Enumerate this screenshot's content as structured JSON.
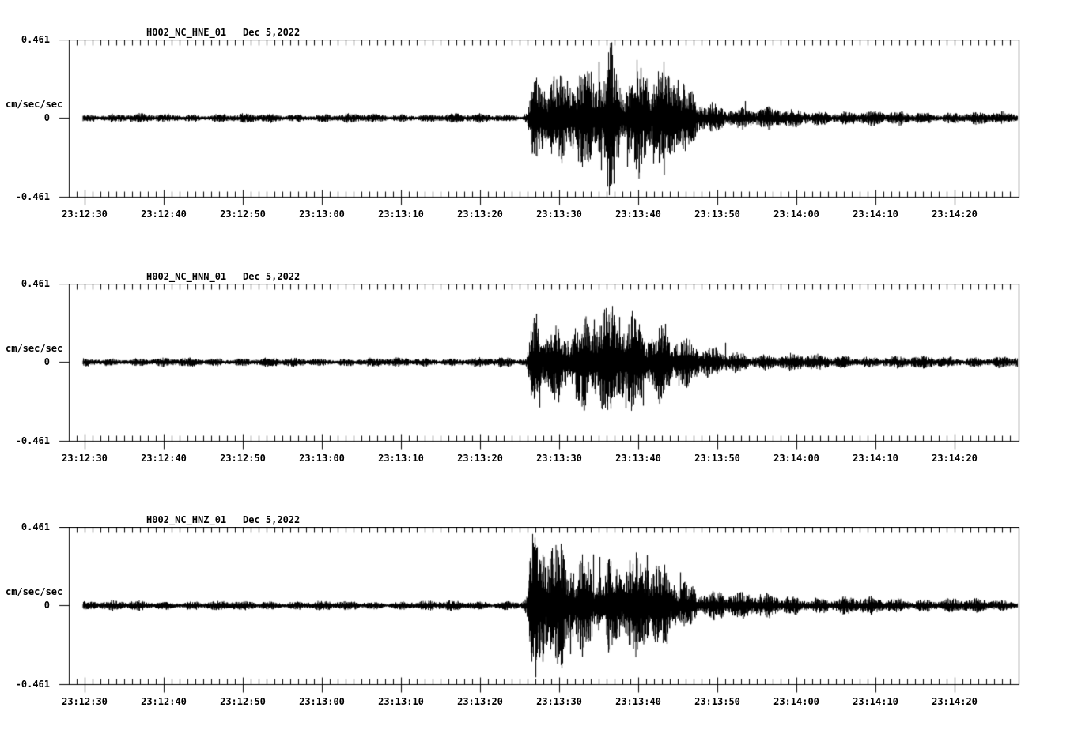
{
  "page": {
    "background": "#ffffff",
    "ink": "#000000"
  },
  "chart_data": [
    {
      "type": "line",
      "kind": "seismogram-trace",
      "title": "H002_NC_HNE_01",
      "date": "Dec 5,2022",
      "ylabel": "cm/sec/sec",
      "y_ticks": [
        "0.461",
        "0",
        "-0.461"
      ],
      "ylim": [
        -0.461,
        0.461
      ],
      "time_window": {
        "start": "23:12:28",
        "end": "23:14:28"
      },
      "x_tick_labels": [
        "23:12:30",
        "23:12:40",
        "23:12:50",
        "23:13:00",
        "23:13:10",
        "23:13:20",
        "23:13:30",
        "23:13:40",
        "23:13:50",
        "23:14:00",
        "23:14:10",
        "23:14:20"
      ],
      "x_major_interval_sec": 10,
      "x_minor_interval_sec": 1,
      "event_onset": "23:13:26",
      "peak_amplitude": 0.445,
      "noise_amplitude": 0.021,
      "seed": 11,
      "envelope": [
        [
          1.8,
          0.021
        ],
        [
          40,
          0.02
        ],
        [
          57.2,
          0.022
        ],
        [
          57.9,
          0.03
        ],
        [
          58.25,
          0.1
        ],
        [
          58.6,
          0.21
        ],
        [
          59.5,
          0.23
        ],
        [
          60.5,
          0.2
        ],
        [
          62,
          0.18
        ],
        [
          63.5,
          0.19
        ],
        [
          65,
          0.21
        ],
        [
          66.5,
          0.26
        ],
        [
          67.6,
          0.3
        ],
        [
          68.5,
          0.4
        ],
        [
          69.2,
          0.31
        ],
        [
          70.2,
          0.26
        ],
        [
          71.2,
          0.27
        ],
        [
          72.3,
          0.3
        ],
        [
          73.5,
          0.25
        ],
        [
          75,
          0.23
        ],
        [
          76.5,
          0.22
        ],
        [
          77.6,
          0.17
        ],
        [
          78.6,
          0.12
        ],
        [
          80,
          0.095
        ],
        [
          82,
          0.075
        ],
        [
          84,
          0.062
        ],
        [
          87,
          0.052
        ],
        [
          90,
          0.044
        ],
        [
          95,
          0.038
        ],
        [
          100,
          0.034
        ],
        [
          105,
          0.031
        ],
        [
          110,
          0.029
        ],
        [
          120,
          0.027
        ]
      ],
      "notable_peaks": [
        [
          68.55,
          0.445
        ],
        [
          68.9,
          -0.385
        ],
        [
          66.95,
          0.33
        ],
        [
          67.3,
          -0.305
        ],
        [
          72.25,
          0.295
        ],
        [
          70.6,
          -0.285
        ],
        [
          64.4,
          -0.255
        ],
        [
          61.3,
          0.245
        ],
        [
          75.2,
          0.25
        ],
        [
          73.9,
          -0.265
        ],
        [
          59.0,
          0.22
        ],
        [
          63.0,
          0.22
        ],
        [
          77.0,
          0.225
        ],
        [
          85.5,
          0.1
        ]
      ]
    },
    {
      "type": "line",
      "kind": "seismogram-trace",
      "title": "H002_NC_HNN_01",
      "date": "Dec 5,2022",
      "ylabel": "cm/sec/sec",
      "y_ticks": [
        "0.461",
        "0",
        "-0.461"
      ],
      "ylim": [
        -0.461,
        0.461
      ],
      "time_window": {
        "start": "23:12:28",
        "end": "23:14:28"
      },
      "x_tick_labels": [
        "23:12:30",
        "23:12:40",
        "23:12:50",
        "23:13:00",
        "23:13:10",
        "23:13:20",
        "23:13:30",
        "23:13:40",
        "23:13:50",
        "23:14:00",
        "23:14:10",
        "23:14:20"
      ],
      "x_major_interval_sec": 10,
      "x_minor_interval_sec": 1,
      "event_onset": "23:13:26",
      "peak_amplitude": 0.285,
      "noise_amplitude": 0.021,
      "seed": 22,
      "envelope": [
        [
          1.8,
          0.021
        ],
        [
          40,
          0.02
        ],
        [
          57.4,
          0.022
        ],
        [
          58.0,
          0.035
        ],
        [
          58.3,
          0.12
        ],
        [
          58.7,
          0.25
        ],
        [
          59.4,
          0.27
        ],
        [
          60.4,
          0.22
        ],
        [
          61.5,
          0.2
        ],
        [
          63,
          0.185
        ],
        [
          64.5,
          0.195
        ],
        [
          66,
          0.21
        ],
        [
          67.2,
          0.22
        ],
        [
          68.2,
          0.245
        ],
        [
          69.2,
          0.255
        ],
        [
          70.2,
          0.26
        ],
        [
          71.2,
          0.245
        ],
        [
          72.2,
          0.25
        ],
        [
          73.2,
          0.225
        ],
        [
          74.2,
          0.21
        ],
        [
          75.2,
          0.195
        ],
        [
          76.2,
          0.17
        ],
        [
          77.2,
          0.135
        ],
        [
          78.2,
          0.105
        ],
        [
          79.6,
          0.082
        ],
        [
          81,
          0.068
        ],
        [
          83,
          0.057
        ],
        [
          86,
          0.047
        ],
        [
          90,
          0.04
        ],
        [
          95,
          0.035
        ],
        [
          100,
          0.031
        ],
        [
          105,
          0.029
        ],
        [
          110,
          0.028
        ],
        [
          120,
          0.026
        ]
      ],
      "notable_peaks": [
        [
          59.05,
          0.285
        ],
        [
          58.75,
          0.26
        ],
        [
          59.5,
          -0.265
        ],
        [
          68.9,
          0.27
        ],
        [
          70.35,
          -0.27
        ],
        [
          66.4,
          0.25
        ],
        [
          72.6,
          -0.255
        ],
        [
          61.9,
          -0.235
        ],
        [
          75.4,
          0.225
        ],
        [
          64.1,
          -0.215
        ],
        [
          69.6,
          0.265
        ],
        [
          71.6,
          0.25
        ],
        [
          83.0,
          0.115
        ]
      ]
    },
    {
      "type": "line",
      "kind": "seismogram-trace",
      "title": "H002_NC_HNZ_01",
      "date": "Dec 5,2022",
      "ylabel": "cm/sec/sec",
      "y_ticks": [
        "0.461",
        "0",
        "-0.461"
      ],
      "ylim": [
        -0.461,
        0.461
      ],
      "time_window": {
        "start": "23:12:28",
        "end": "23:14:28"
      },
      "x_tick_labels": [
        "23:12:30",
        "23:12:40",
        "23:12:50",
        "23:13:00",
        "23:13:10",
        "23:13:20",
        "23:13:30",
        "23:13:40",
        "23:13:50",
        "23:14:00",
        "23:14:10",
        "23:14:20"
      ],
      "x_major_interval_sec": 10,
      "x_minor_interval_sec": 1,
      "event_onset": "23:13:26",
      "peak_amplitude": -0.42,
      "noise_amplitude": 0.022,
      "seed": 33,
      "envelope": [
        [
          1.8,
          0.022
        ],
        [
          40,
          0.021
        ],
        [
          57.3,
          0.024
        ],
        [
          57.9,
          0.05
        ],
        [
          58.2,
          0.18
        ],
        [
          58.55,
          0.31
        ],
        [
          59.2,
          0.34
        ],
        [
          60,
          0.3
        ],
        [
          61,
          0.27
        ],
        [
          62.5,
          0.28
        ],
        [
          64,
          0.25
        ],
        [
          65.5,
          0.26
        ],
        [
          67,
          0.245
        ],
        [
          68.5,
          0.225
        ],
        [
          70,
          0.235
        ],
        [
          71.5,
          0.215
        ],
        [
          73,
          0.225
        ],
        [
          74.5,
          0.185
        ],
        [
          76,
          0.155
        ],
        [
          77.5,
          0.125
        ],
        [
          79,
          0.103
        ],
        [
          81,
          0.088
        ],
        [
          83,
          0.073
        ],
        [
          85,
          0.062
        ],
        [
          88,
          0.054
        ],
        [
          92,
          0.047
        ],
        [
          96,
          0.042
        ],
        [
          100,
          0.039
        ],
        [
          105,
          0.036
        ],
        [
          110,
          0.033
        ],
        [
          120,
          0.029
        ]
      ],
      "notable_peaks": [
        [
          58.95,
          -0.42
        ],
        [
          58.75,
          0.345
        ],
        [
          59.45,
          -0.305
        ],
        [
          59.9,
          -0.33
        ],
        [
          61.8,
          0.32
        ],
        [
          62.6,
          0.27
        ],
        [
          63.4,
          -0.285
        ],
        [
          66.3,
          0.3
        ],
        [
          68.2,
          -0.275
        ],
        [
          73.05,
          0.295
        ],
        [
          64.9,
          -0.3
        ],
        [
          70.9,
          0.265
        ],
        [
          75.6,
          -0.225
        ],
        [
          67.1,
          0.285
        ],
        [
          77.3,
          0.195
        ]
      ]
    }
  ]
}
